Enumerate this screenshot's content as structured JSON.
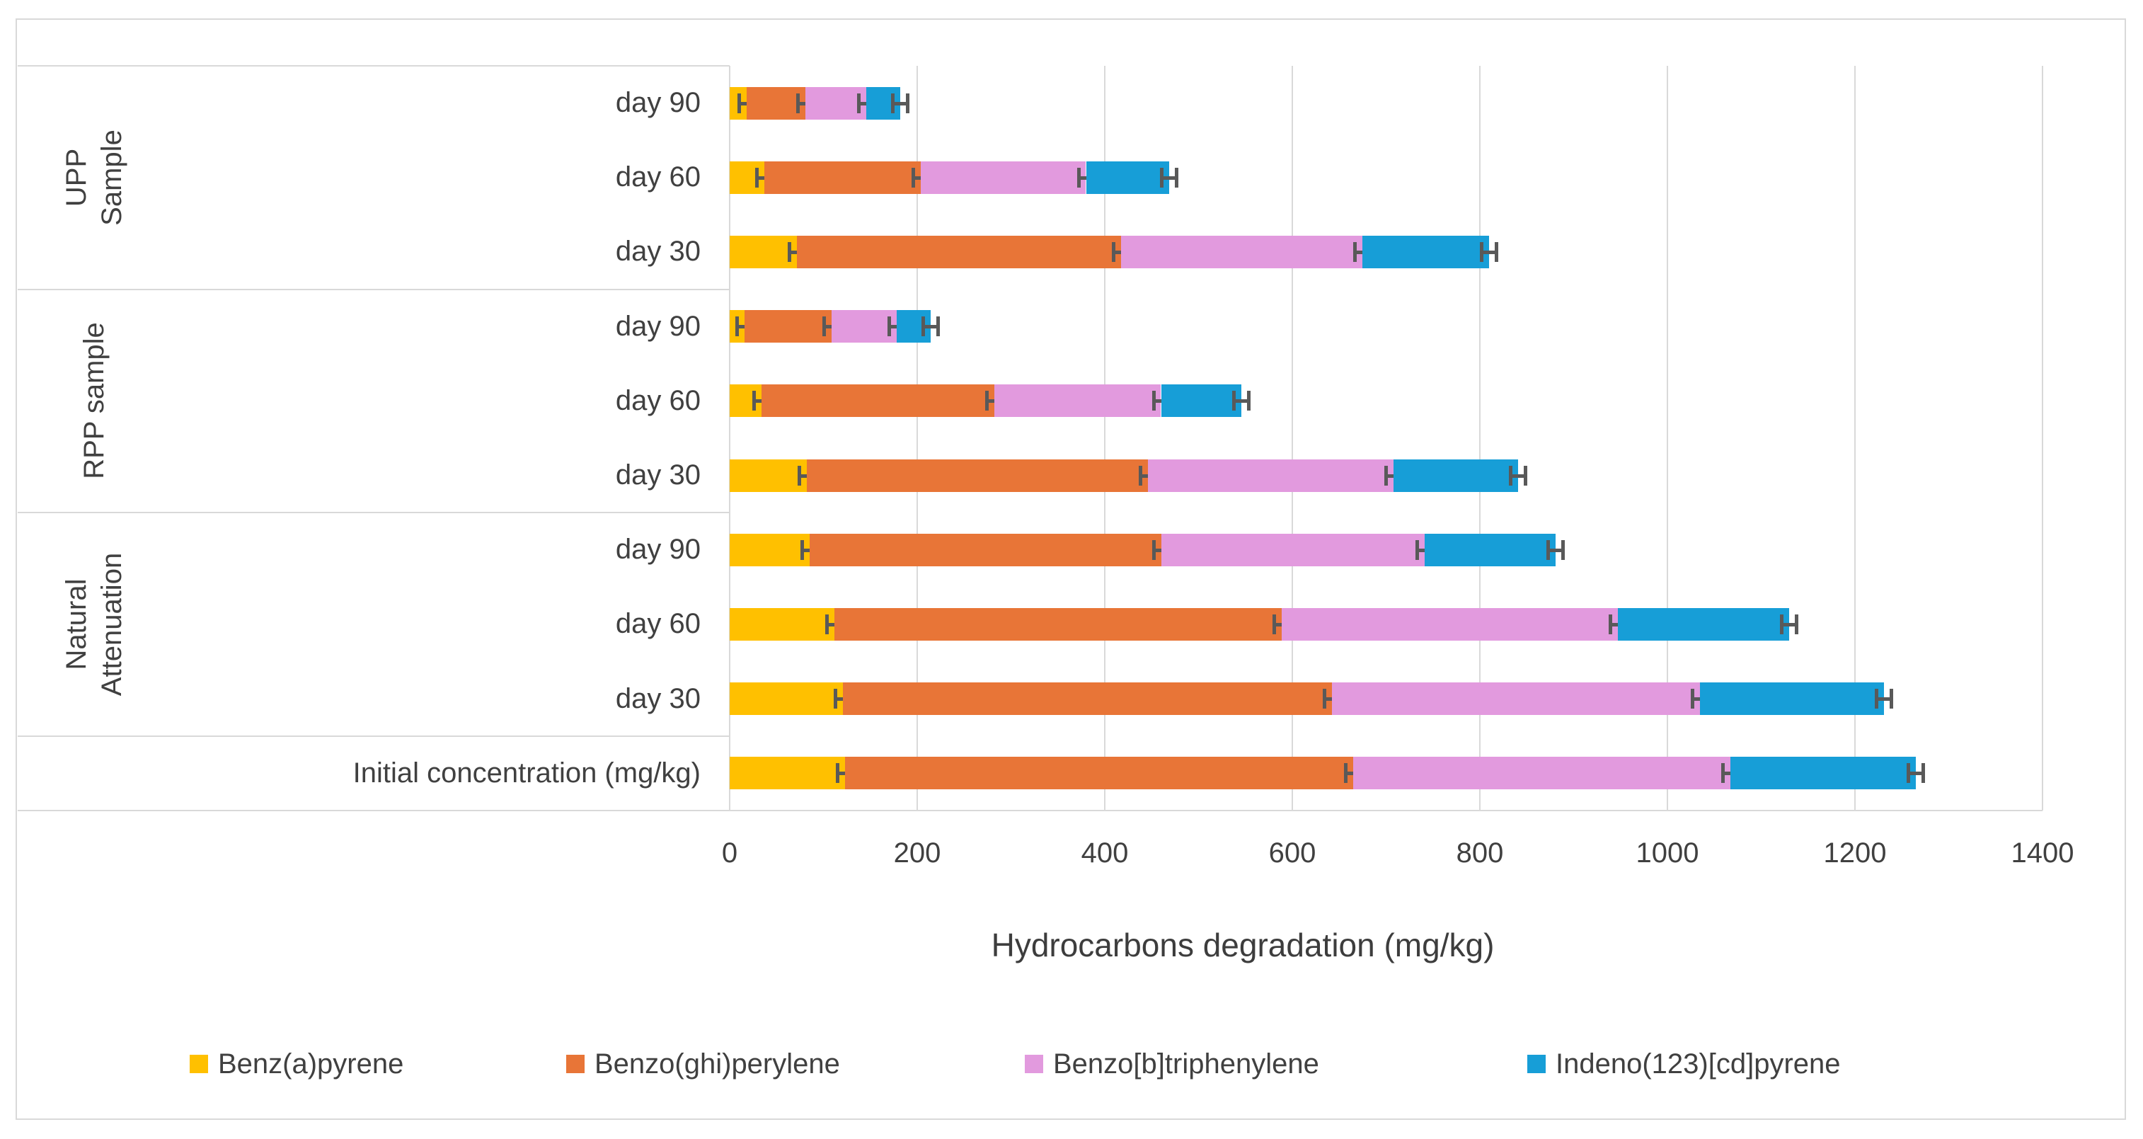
{
  "chart_data": {
    "type": "bar",
    "orientation": "horizontal",
    "stacked": true,
    "title": "",
    "xlabel": "Hydrocarbons degradation (mg/kg)",
    "ylabel": "",
    "xlim": [
      0,
      1400
    ],
    "x_ticks": [
      0,
      200,
      400,
      600,
      800,
      1000,
      1200,
      1400
    ],
    "grid": true,
    "error_bars": true,
    "legend_position": "bottom",
    "groups": [
      {
        "label": "UPP\nSample",
        "start": 0,
        "end": 2
      },
      {
        "label": "RPP sample",
        "start": 3,
        "end": 5
      },
      {
        "label": "Natural\nAttenuation",
        "start": 6,
        "end": 8
      },
      {
        "label": "",
        "start": 9,
        "end": 9
      }
    ],
    "categories": [
      "day 90",
      "day 60",
      "day 30",
      "day 90",
      "day 60",
      "day 30",
      "day 90",
      "day 60",
      "day 30",
      "Initial concentration (mg/kg)"
    ],
    "series": [
      {
        "name": "Benz(a)pyrene",
        "color": "#FFC000",
        "values": [
          18,
          37,
          72,
          16,
          34,
          82,
          85,
          112,
          121,
          123
        ]
      },
      {
        "name": "Benzo(ghi)perylene",
        "color": "#E87537",
        "values": [
          63,
          167,
          345,
          93,
          248,
          364,
          375,
          477,
          521,
          542
        ]
      },
      {
        "name": "Benzo[b]triphenylene",
        "color": "#E29ADE",
        "values": [
          65,
          176,
          258,
          69,
          178,
          262,
          281,
          358,
          393,
          402
        ]
      },
      {
        "name": "Indeno(123)[cd]pyrene",
        "color": "#179ED7",
        "values": [
          36,
          89,
          135,
          36,
          86,
          133,
          140,
          183,
          196,
          198
        ]
      }
    ],
    "colors": {
      "grid": "#D9D9D9",
      "error_bar": "#595959",
      "text": "#404040"
    }
  }
}
